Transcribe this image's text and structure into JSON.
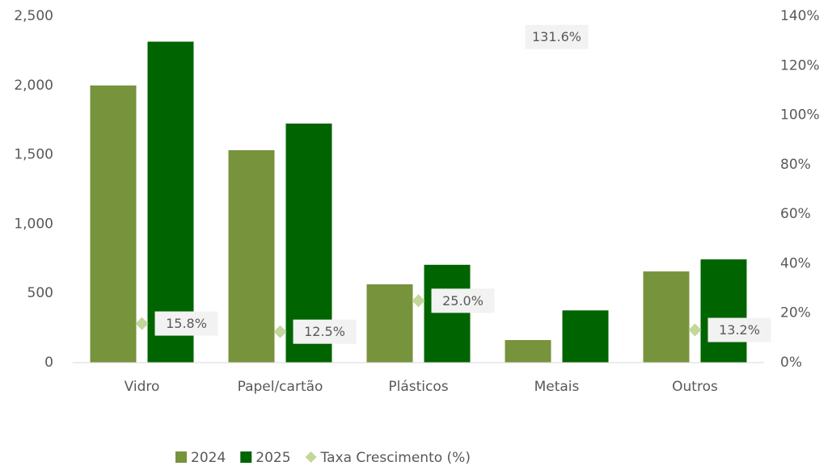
{
  "chart_data": {
    "type": "bar",
    "categories": [
      "Vidro",
      "Papel/cartão",
      "Plásticos",
      "Metais",
      "Outros"
    ],
    "series": [
      {
        "name": "2024",
        "color": "#77933c",
        "values": [
          2000,
          1533,
          565,
          163,
          658
        ]
      },
      {
        "name": "2025",
        "color": "#006400",
        "values": [
          2316,
          1725,
          706,
          377,
          745
        ]
      },
      {
        "name": "Taxa Crescimento (%)",
        "color": "#c3d69b",
        "axis": "y2",
        "type": "scatter",
        "values": [
          15.8,
          12.5,
          25.0,
          131.6,
          13.2
        ],
        "value_labels": [
          "15.8%",
          "12.5%",
          "25.0%",
          "131.6%",
          "13.2%"
        ]
      }
    ],
    "ylim": [
      0,
      2500
    ],
    "yticks": [
      0,
      500,
      {
        "value": 1000,
        "label": "1,000"
      },
      {
        "value": 1500,
        "label": "1,500"
      },
      {
        "value": 2000,
        "label": "2,000"
      },
      {
        "value": 2500,
        "label": "2,500"
      }
    ],
    "y2lim": [
      0,
      140
    ],
    "y2ticks": [
      {
        "value": 0,
        "label": "0%"
      },
      {
        "value": 20,
        "label": "20%"
      },
      {
        "value": 40,
        "label": "40%"
      },
      {
        "value": 60,
        "label": "60%"
      },
      {
        "value": 80,
        "label": "80%"
      },
      {
        "value": 100,
        "label": "100%"
      },
      {
        "value": 120,
        "label": "120%"
      },
      {
        "value": 140,
        "label": "140%"
      }
    ],
    "legend": "bottom"
  }
}
